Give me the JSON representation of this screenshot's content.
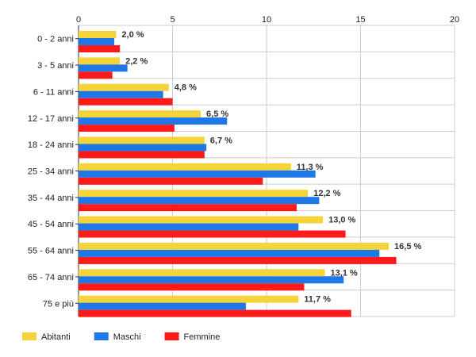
{
  "chart_data": {
    "type": "bar",
    "orientation": "horizontal",
    "categories": [
      "0 - 2 anni",
      "3 - 5 anni",
      "6 - 11 anni",
      "12 - 17 anni",
      "18 - 24 anni",
      "25 - 34 anni",
      "35 - 44 anni",
      "45 - 54 anni",
      "55 - 64 anni",
      "65 - 74 anni",
      "75 e più"
    ],
    "series": [
      {
        "name": "Abitanti",
        "color": "#f5d43a",
        "values": [
          2.0,
          2.2,
          4.8,
          6.5,
          6.7,
          11.3,
          12.2,
          13.0,
          16.5,
          13.1,
          11.7
        ]
      },
      {
        "name": "Maschi",
        "color": "#1f78e8",
        "values": [
          1.9,
          2.6,
          4.5,
          7.9,
          6.8,
          12.6,
          12.8,
          11.7,
          16.0,
          14.1,
          8.9
        ]
      },
      {
        "name": "Femmine",
        "color": "#ff1a1a",
        "values": [
          2.2,
          1.8,
          5.0,
          5.1,
          6.7,
          9.8,
          11.6,
          14.2,
          16.9,
          12.0,
          14.5
        ]
      }
    ],
    "data_labels": [
      "2,0 %",
      "2,2 %",
      "4,8 %",
      "6,5 %",
      "6,7 %",
      "11,3 %",
      "12,2 %",
      "13,0 %",
      "16,5 %",
      "13,1 %",
      "11,7 %"
    ],
    "x_ticks": [
      "0",
      "5",
      "10",
      "15",
      "20"
    ],
    "xlim": [
      0,
      20
    ],
    "tick_position": "top",
    "grid": true,
    "legend_position": "bottom-left",
    "title": "",
    "xlabel": "",
    "ylabel": ""
  }
}
